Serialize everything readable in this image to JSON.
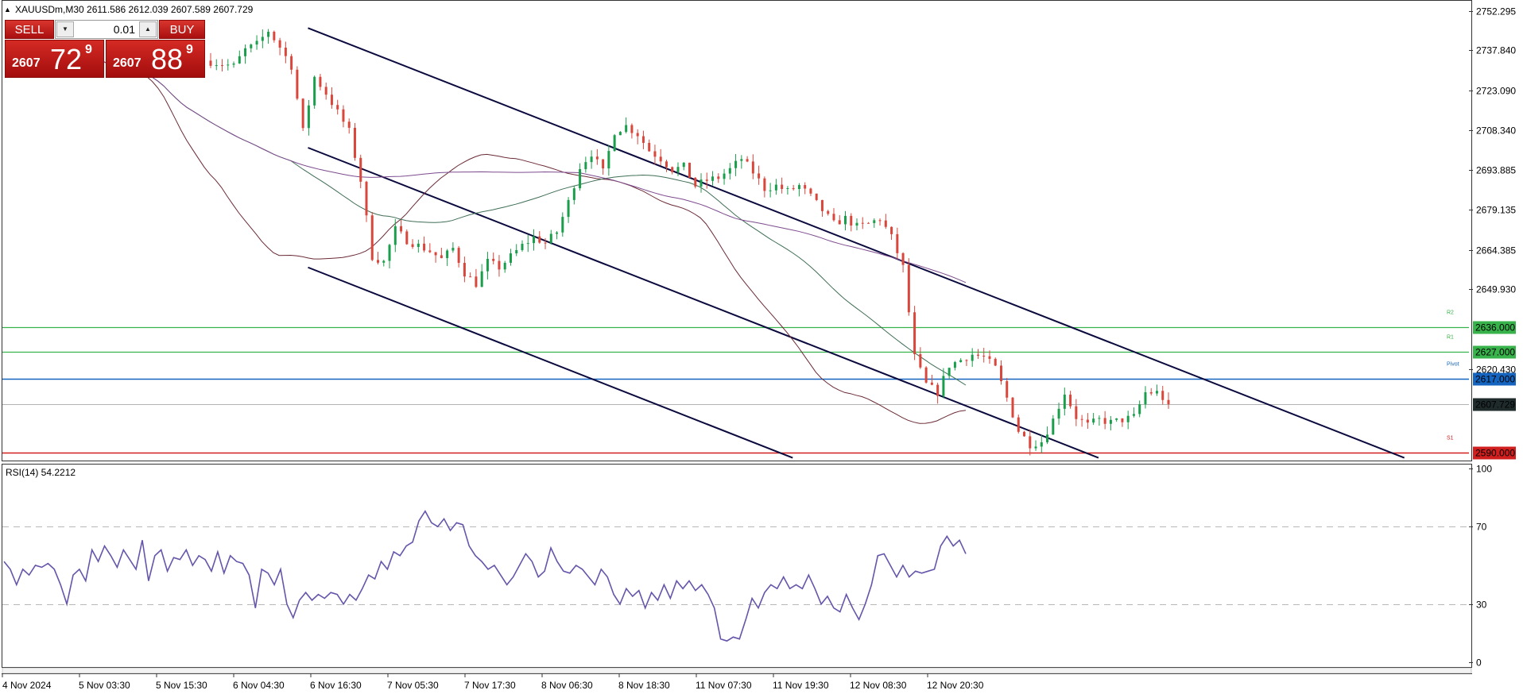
{
  "header": {
    "symbol_line": "XAUUSDm,M30  2611.586 2612.039 2607.589 2607.729"
  },
  "trade_panel": {
    "sell_label": "SELL",
    "buy_label": "BUY",
    "lot": "0.01",
    "sell_price_prefix": "2607",
    "sell_price_big": "72",
    "sell_price_sup": "9",
    "buy_price_prefix": "2607",
    "buy_price_big": "88",
    "buy_price_sup": "9"
  },
  "colors": {
    "bull": "#1b9e4b",
    "bear": "#d9463b",
    "ma_fast": "#6b2a36",
    "ma_mid": "#3f6e55",
    "ma_slow": "#7d4b8e",
    "channel": "#0b0a3e",
    "resistance": "#38b24a",
    "pivot": "#1565c0",
    "support": "#d11f1f",
    "rsi": "#6655aa"
  },
  "chart_data": [
    {
      "type": "candlestick",
      "title": "XAUUSDm,M30",
      "ohlc_header": {
        "open": 2611.586,
        "high": 2612.039,
        "low": 2607.589,
        "close": 2607.729
      },
      "ylim": [
        2587,
        2756
      ],
      "y_ticks": [
        "2752.295",
        "2737.840",
        "2723.090",
        "2708.340",
        "2693.885",
        "2679.135",
        "2664.385",
        "2649.930",
        "2620.430"
      ],
      "x_ticks": [
        "4 Nov 2024",
        "5 Nov 03:30",
        "5 Nov 15:30",
        "6 Nov 04:30",
        "6 Nov 16:30",
        "7 Nov 05:30",
        "7 Nov 17:30",
        "8 Nov 06:30",
        "8 Nov 18:30",
        "11 Nov 07:30",
        "11 Nov 19:30",
        "12 Nov 08:30",
        "12 Nov 20:30"
      ],
      "price_path": [
        [
          0,
          2734
        ],
        [
          5,
          2732
        ],
        [
          7,
          2738
        ],
        [
          9,
          2740
        ],
        [
          11,
          2745
        ],
        [
          13,
          2739
        ],
        [
          15,
          2732
        ],
        [
          17,
          2708
        ],
        [
          19,
          2728
        ],
        [
          21,
          2722
        ],
        [
          23,
          2715
        ],
        [
          25,
          2708
        ],
        [
          27,
          2690
        ],
        [
          29,
          2662
        ],
        [
          31,
          2660
        ],
        [
          33,
          2672
        ],
        [
          35,
          2668
        ],
        [
          37,
          2666
        ],
        [
          39,
          2664
        ],
        [
          41,
          2661
        ],
        [
          43,
          2665
        ],
        [
          45,
          2656
        ],
        [
          47,
          2652
        ],
        [
          49,
          2660
        ],
        [
          51,
          2658
        ],
        [
          53,
          2662
        ],
        [
          55,
          2666
        ],
        [
          57,
          2669
        ],
        [
          59,
          2667
        ],
        [
          61,
          2671
        ],
        [
          63,
          2682
        ],
        [
          65,
          2695
        ],
        [
          67,
          2700
        ],
        [
          69,
          2693
        ],
        [
          71,
          2708
        ],
        [
          73,
          2710
        ],
        [
          75,
          2707
        ],
        [
          77,
          2701
        ],
        [
          79,
          2698
        ],
        [
          81,
          2694
        ],
        [
          83,
          2695
        ],
        [
          85,
          2688
        ],
        [
          87,
          2690
        ],
        [
          89,
          2691
        ],
        [
          91,
          2694
        ],
        [
          93,
          2698
        ],
        [
          95,
          2693
        ],
        [
          97,
          2687
        ],
        [
          99,
          2688
        ],
        [
          101,
          2686
        ],
        [
          103,
          2688
        ],
        [
          105,
          2684
        ],
        [
          107,
          2679
        ],
        [
          109,
          2674
        ],
        [
          111,
          2676
        ],
        [
          113,
          2673
        ],
        [
          115,
          2674
        ],
        [
          117,
          2676
        ],
        [
          119,
          2669
        ],
        [
          121,
          2658
        ],
        [
          123,
          2625
        ],
        [
          125,
          2615
        ],
        [
          127,
          2612
        ],
        [
          129,
          2622
        ],
        [
          131,
          2624
        ],
        [
          133,
          2626
        ],
        [
          135,
          2625
        ],
        [
          137,
          2621
        ],
        [
          139,
          2610
        ],
        [
          141,
          2598
        ],
        [
          143,
          2593
        ],
        [
          145,
          2594
        ],
        [
          147,
          2602
        ],
        [
          149,
          2612
        ],
        [
          151,
          2603
        ],
        [
          153,
          2600
        ],
        [
          155,
          2602
        ],
        [
          157,
          2601
        ],
        [
          159,
          2602
        ],
        [
          161,
          2603
        ],
        [
          163,
          2612
        ],
        [
          165,
          2612
        ],
        [
          166,
          2610
        ]
      ],
      "horizontal_levels": [
        {
          "label": "2636.000",
          "value": 2636.0,
          "name": "R2",
          "kind": "resistance"
        },
        {
          "label": "2627.000",
          "value": 2627.0,
          "name": "R1",
          "kind": "resistance"
        },
        {
          "label": "2617.000",
          "value": 2617.0,
          "name": "Pivot",
          "kind": "pivot"
        },
        {
          "label": "2607.729",
          "value": 2607.729,
          "name": "",
          "kind": "bid"
        },
        {
          "label": "2590.000",
          "value": 2590.0,
          "name": "S1",
          "kind": "support"
        }
      ],
      "trendlines": [
        {
          "from": [
            52,
            2746
          ],
          "to": [
            242,
            2588
          ]
        },
        {
          "from": [
            52,
            2702
          ],
          "to": [
            189,
            2588
          ]
        },
        {
          "from": [
            52,
            2658
          ],
          "to": [
            136,
            2588
          ]
        }
      ]
    },
    {
      "type": "line",
      "title": "RSI(14) 54.2212",
      "ylim": [
        0,
        100
      ],
      "y_ticks": [
        "100",
        "70",
        "30",
        "0"
      ],
      "levels": [
        70,
        30
      ],
      "values": [
        52,
        48,
        40,
        48,
        45,
        50,
        49,
        51,
        48,
        40,
        30,
        45,
        48,
        42,
        58,
        52,
        60,
        55,
        49,
        58,
        53,
        48,
        63,
        42,
        55,
        58,
        47,
        54,
        53,
        58,
        50,
        55,
        53,
        47,
        57,
        46,
        55,
        52,
        51,
        45,
        28,
        48,
        46,
        40,
        48,
        30,
        23,
        32,
        36,
        32,
        35,
        33,
        36,
        35,
        30,
        35,
        32,
        38,
        45,
        43,
        52,
        48,
        57,
        55,
        60,
        62,
        73,
        78,
        72,
        70,
        74,
        68,
        72,
        71,
        60,
        55,
        52,
        48,
        50,
        45,
        40,
        44,
        50,
        56,
        52,
        44,
        47,
        59,
        52,
        47,
        46,
        50,
        48,
        44,
        40,
        48,
        44,
        35,
        30,
        38,
        34,
        37,
        28,
        36,
        32,
        40,
        33,
        42,
        38,
        42,
        37,
        40,
        35,
        28,
        12,
        11,
        13,
        12,
        22,
        33,
        28,
        36,
        40,
        38,
        44,
        38,
        40,
        38,
        45,
        38,
        30,
        34,
        28,
        26,
        35,
        28,
        22,
        30,
        40,
        55,
        56,
        50,
        44,
        50,
        44,
        47,
        46,
        47,
        48,
        60,
        65,
        60,
        63,
        56
      ]
    }
  ]
}
